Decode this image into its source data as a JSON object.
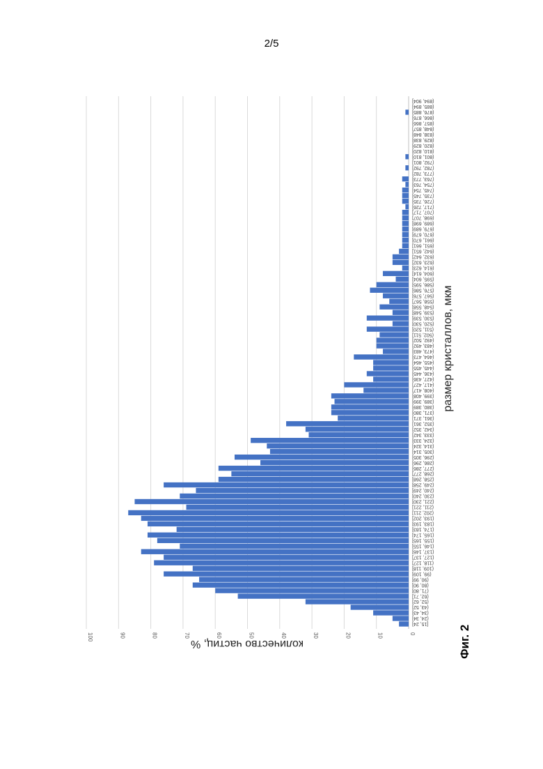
{
  "page": {
    "page_number": "2/5",
    "figure_caption": "Фиг. 2"
  },
  "chart_data": {
    "type": "bar",
    "orientation": "horizontal",
    "title": "",
    "xlabel": "размер кристаллов, мкм",
    "ylabel": "количество частиц, %",
    "ylim": [
      0,
      100
    ],
    "yticks": [
      0,
      10,
      20,
      30,
      40,
      50,
      60,
      70,
      80,
      90,
      100
    ],
    "grid": true,
    "bar_color": "#4472c4",
    "categories": [
      "[15, 24]",
      "(24, 34]",
      "(34, 43]",
      "(43, 52]",
      "(52, 62]",
      "(62, 71]",
      "(71, 80]",
      "(80, 90]",
      "(90, 99]",
      "(99, 109]",
      "(109, 118]",
      "(118, 127]",
      "(127, 137]",
      "(137, 146]",
      "(146, 155]",
      "(155, 165]",
      "(165, 174]",
      "(174, 183]",
      "(183, 193]",
      "(193, 202]",
      "(202, 211]",
      "(211, 221]",
      "(221, 230]",
      "(230, 240]",
      "(240, 249]",
      "(249, 258]",
      "(258, 268]",
      "(268, 277]",
      "(277, 286]",
      "(286, 296]",
      "(296, 305]",
      "(305, 314]",
      "(314, 324]",
      "(324, 333]",
      "(333, 342]",
      "(342, 352]",
      "(352, 361]",
      "(361, 371]",
      "(371, 380]",
      "(380, 389]",
      "(389, 399]",
      "(399, 408]",
      "(408, 417]",
      "(417, 427]",
      "(427, 436]",
      "(436, 445]",
      "(445, 455]",
      "(455, 464]",
      "(464, 473]",
      "(473, 483]",
      "(483, 492]",
      "(492, 502]",
      "(502, 511]",
      "(511, 520]",
      "(520, 530]",
      "(530, 539]",
      "(539, 548]",
      "(548, 558]",
      "(558, 567]",
      "(567, 576]",
      "(576, 586]",
      "(586, 595]",
      "(595, 604]",
      "(604, 614]",
      "(614, 623]",
      "(623, 632]",
      "(632, 642]",
      "(642, 651]",
      "(651, 661]",
      "(661, 670]",
      "(670, 679]",
      "(679, 689]",
      "(689, 698]",
      "(698, 707]",
      "(707, 717]",
      "(717, 726]",
      "(726, 735]",
      "(735, 745]",
      "(745, 754]",
      "(754, 763]",
      "(763, 773]",
      "(773, 782]",
      "(782, 792]",
      "(792, 801]",
      "(801, 810]",
      "(810, 820]",
      "(820, 829]",
      "(829, 838]",
      "(838, 848]",
      "(848, 857]",
      "(857, 866]",
      "(866, 876]",
      "(876, 885]",
      "(885, 894]",
      "(894, 904]"
    ],
    "values": [
      3,
      5,
      11,
      18,
      32,
      53,
      60,
      67,
      65,
      76,
      67,
      79,
      76,
      83,
      71,
      78,
      81,
      72,
      81,
      83,
      87,
      69,
      85,
      71,
      66,
      76,
      59,
      55,
      59,
      46,
      54,
      43,
      44,
      49,
      31,
      32,
      38,
      22,
      24,
      24,
      23,
      24,
      14,
      20,
      11,
      13,
      11,
      11,
      17,
      8,
      10,
      10,
      9,
      13,
      5,
      13,
      5,
      9,
      6,
      8,
      12,
      10,
      4,
      8,
      2,
      5,
      5,
      3,
      2,
      2,
      2,
      2,
      2,
      2,
      2,
      1,
      2,
      2,
      2,
      1,
      2,
      0,
      1,
      0,
      1,
      0,
      0,
      0,
      0,
      0,
      0,
      0,
      1,
      0,
      0
    ]
  }
}
